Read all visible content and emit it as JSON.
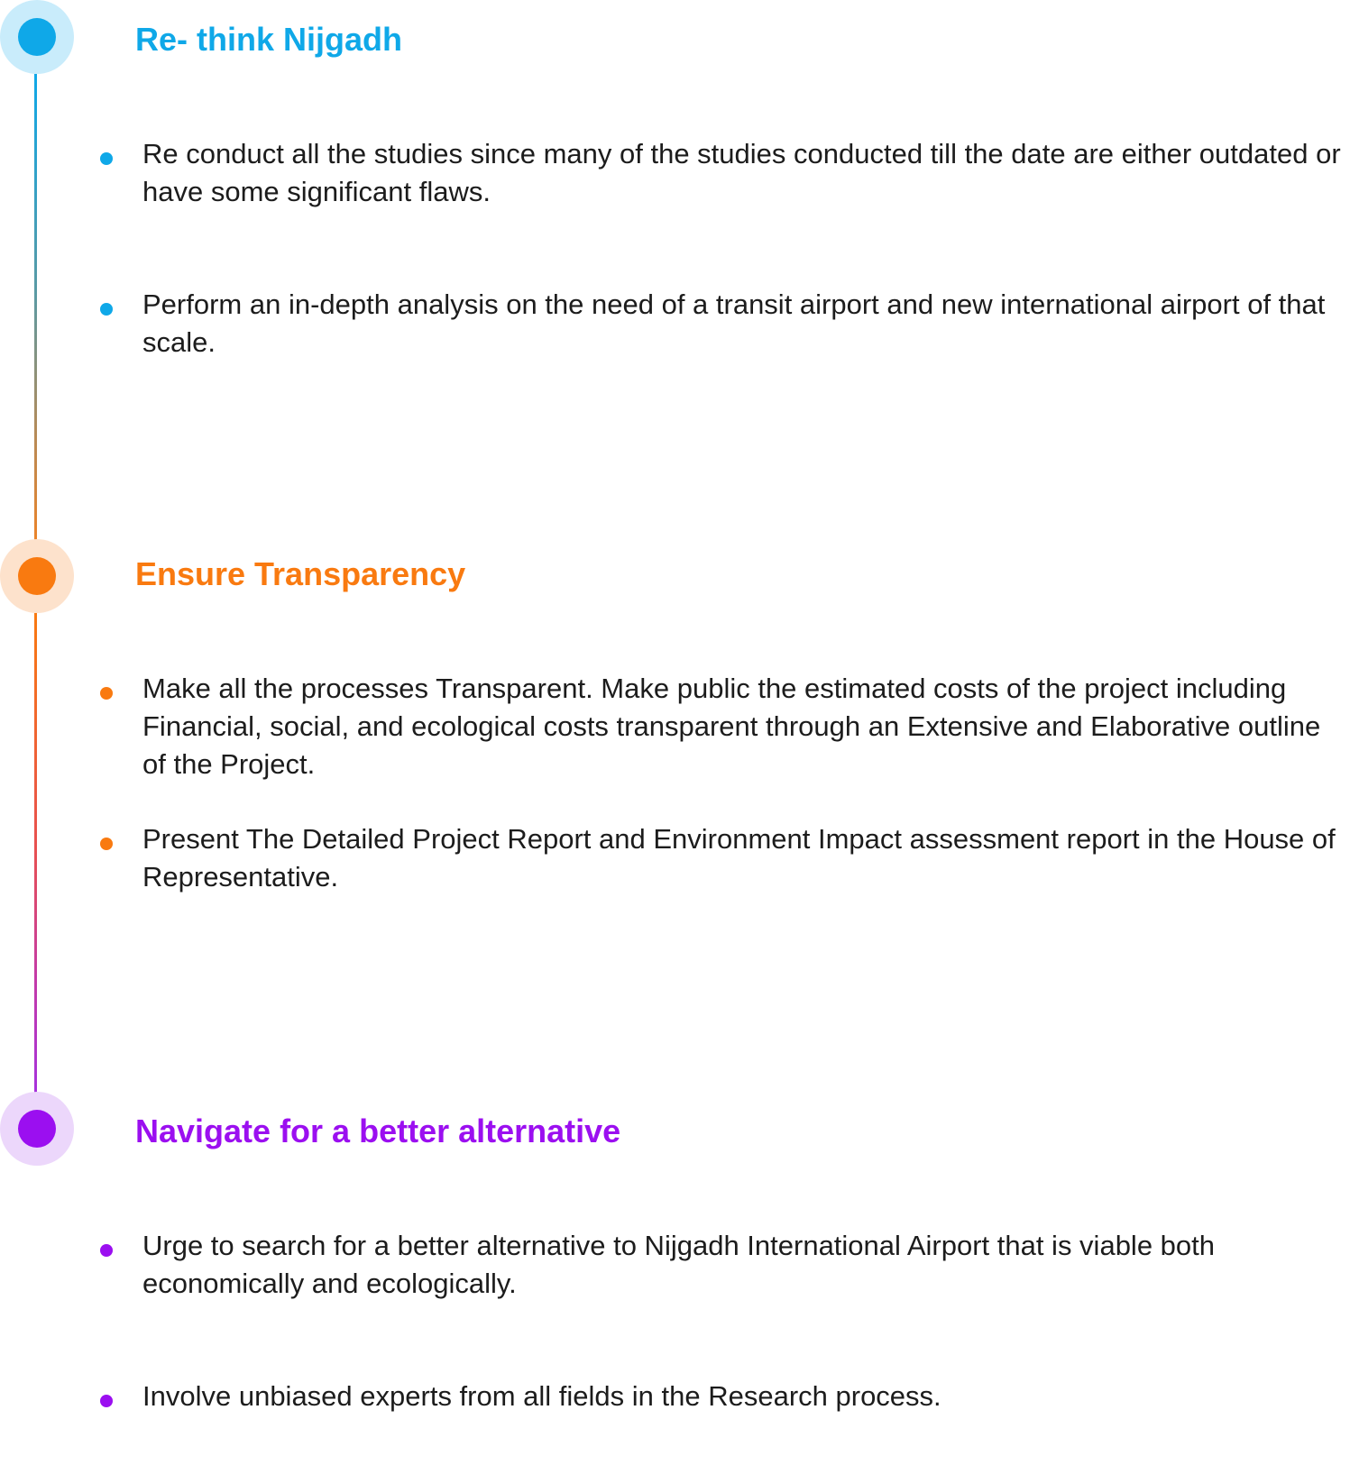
{
  "colors": {
    "section1": "#0fa8e8",
    "section1_halo": "#c9ecfb",
    "section2": "#f97a10",
    "section2_halo": "#fde2cc",
    "section3": "#9b0ff0",
    "section3_halo": "#ecd7fb",
    "body_text": "#1c1c1c"
  },
  "sections": [
    {
      "title": "Re- think Nijgadh",
      "bullets": [
        "Re conduct all the studies since many of the studies conducted till the date are either outdated or have some significant flaws.",
        "Perform an in-depth analysis on the need of a transit airport and new international airport of that scale."
      ]
    },
    {
      "title": "Ensure Transparency",
      "bullets": [
        "Make all the processes Transparent. Make public the estimated costs of the project including Financial, social, and ecological costs transparent through an Extensive and Elaborative outline of the Project.",
        "Present The Detailed Project Report and Environment Impact assessment report in the House of Representative."
      ]
    },
    {
      "title": "Navigate for a better alternative",
      "bullets": [
        "Urge to search for a better alternative to Nijgadh International Airport that is viable both economically and ecologically.",
        "Involve unbiased experts from all fields in the Research process."
      ]
    }
  ]
}
